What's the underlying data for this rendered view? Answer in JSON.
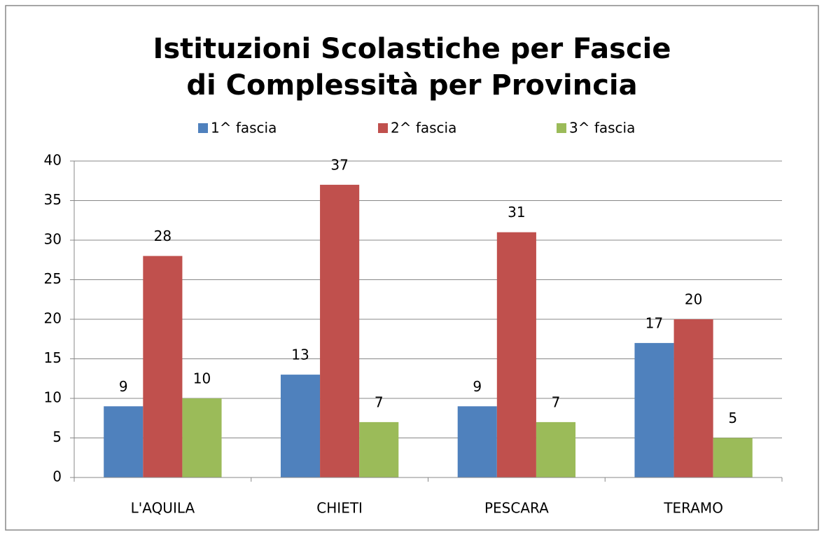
{
  "chart_data": {
    "type": "bar",
    "title": "Istituzioni Scolastiche per Fascie di Complessità per Provincia",
    "categories": [
      "L'AQUILA",
      "CHIETI",
      "PESCARA",
      "TERAMO"
    ],
    "series": [
      {
        "name": "1^ fascia",
        "color": "#4f81bd",
        "values": [
          9,
          13,
          9,
          17
        ]
      },
      {
        "name": "2^ fascia",
        "color": "#c0504d",
        "values": [
          28,
          37,
          31,
          20
        ]
      },
      {
        "name": "3^ fascia",
        "color": "#9bbb59",
        "values": [
          10,
          7,
          7,
          5
        ]
      }
    ],
    "ylim": [
      0,
      40
    ],
    "yticks": [
      0,
      5,
      10,
      15,
      20,
      25,
      30,
      35,
      40
    ],
    "grid": true,
    "legend": "top"
  }
}
